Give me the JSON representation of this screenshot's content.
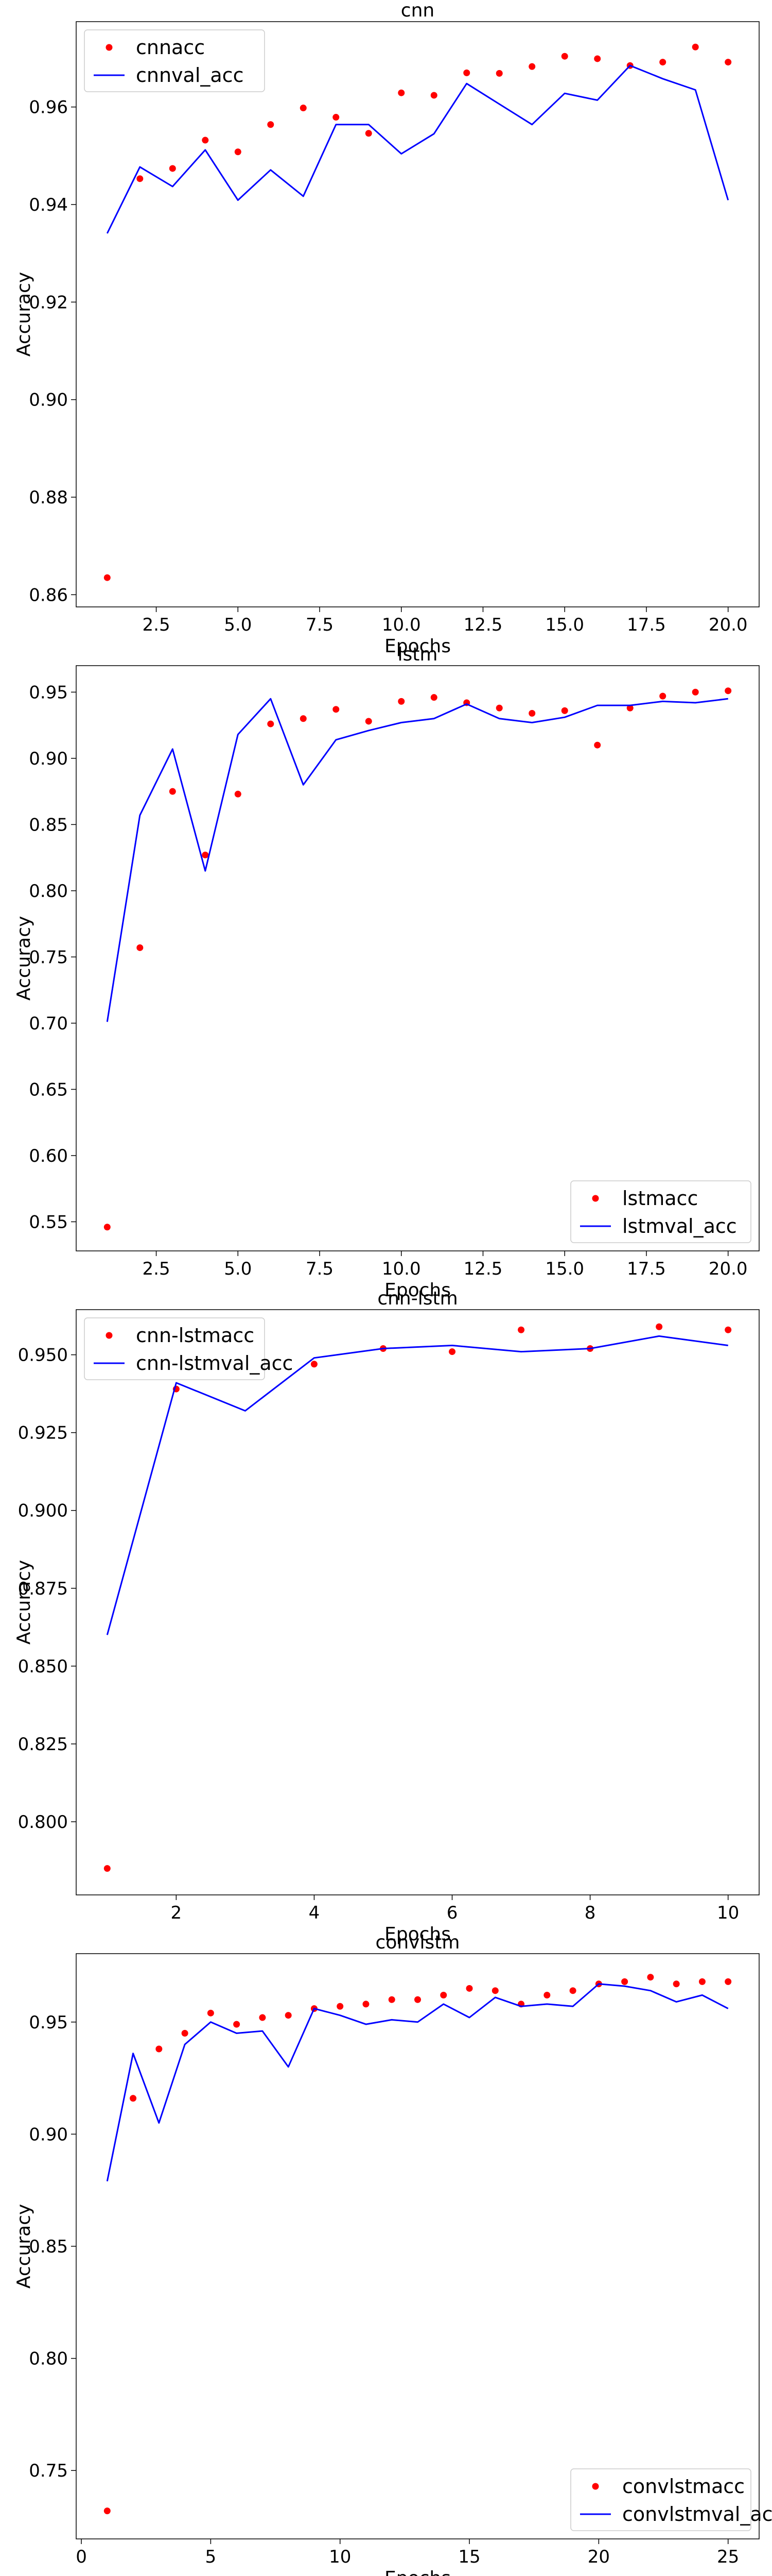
{
  "chart_data": [
    {
      "type": "line",
      "title": "cnn",
      "xlabel": "Epochs",
      "ylabel": "Accuracy",
      "xlim": [
        0.05,
        20.95
      ],
      "ylim": [
        0.8575,
        0.9775
      ],
      "xticks": [
        2.5,
        5.0,
        7.5,
        10.0,
        12.5,
        15.0,
        17.5,
        20.0
      ],
      "xtick_labels": [
        "2.5",
        "5.0",
        "7.5",
        "10.0",
        "12.5",
        "15.0",
        "17.5",
        "20.0"
      ],
      "yticks": [
        0.86,
        0.88,
        0.9,
        0.92,
        0.94,
        0.96
      ],
      "ytick_labels": [
        "0.86",
        "0.88",
        "0.90",
        "0.92",
        "0.94",
        "0.96"
      ],
      "legend_position": "top-left",
      "x": [
        1,
        2,
        3,
        4,
        5,
        6,
        7,
        8,
        9,
        10,
        11,
        12,
        13,
        14,
        15,
        16,
        17,
        18,
        19,
        20
      ],
      "series": [
        {
          "name": "cnnacc",
          "style": "points",
          "color": "#ff0000",
          "values": [
            0.8635,
            0.9453,
            0.9474,
            0.9532,
            0.9508,
            0.9564,
            0.9598,
            0.9579,
            0.9546,
            0.9629,
            0.9624,
            0.967,
            0.9669,
            0.9683,
            0.9704,
            0.9699,
            0.9685,
            0.9692,
            0.9723,
            0.9692
          ]
        },
        {
          "name": "cnnval_acc",
          "style": "line",
          "color": "#0000ff",
          "values": [
            0.9341,
            0.9477,
            0.9437,
            0.9512,
            0.9409,
            0.9471,
            0.9417,
            0.9564,
            0.9564,
            0.9504,
            0.9545,
            0.9648,
            0.9606,
            0.9564,
            0.9628,
            0.9614,
            0.9685,
            0.9658,
            0.9635,
            0.9409
          ]
        }
      ]
    },
    {
      "type": "line",
      "title": "lstm",
      "xlabel": "Epochs",
      "ylabel": "Accuracy",
      "xlim": [
        0.05,
        20.95
      ],
      "ylim": [
        0.528,
        0.97
      ],
      "xticks": [
        2.5,
        5.0,
        7.5,
        10.0,
        12.5,
        15.0,
        17.5,
        20.0
      ],
      "xtick_labels": [
        "2.5",
        "5.0",
        "7.5",
        "10.0",
        "12.5",
        "15.0",
        "17.5",
        "20.0"
      ],
      "yticks": [
        0.55,
        0.6,
        0.65,
        0.7,
        0.75,
        0.8,
        0.85,
        0.9,
        0.95
      ],
      "ytick_labels": [
        "0.55",
        "0.60",
        "0.65",
        "0.70",
        "0.75",
        "0.80",
        "0.85",
        "0.90",
        "0.95"
      ],
      "legend_position": "bottom-right",
      "x": [
        1,
        2,
        3,
        4,
        5,
        6,
        7,
        8,
        9,
        10,
        11,
        12,
        13,
        14,
        15,
        16,
        17,
        18,
        19,
        20
      ],
      "series": [
        {
          "name": "lstmacc",
          "style": "points",
          "color": "#ff0000",
          "values": [
            0.546,
            0.757,
            0.875,
            0.827,
            0.873,
            0.926,
            0.93,
            0.937,
            0.928,
            0.943,
            0.946,
            0.942,
            0.938,
            0.934,
            0.936,
            0.91,
            0.938,
            0.947,
            0.95,
            0.951
          ]
        },
        {
          "name": "lstmval_acc",
          "style": "line",
          "color": "#0000ff",
          "values": [
            0.701,
            0.857,
            0.907,
            0.815,
            0.918,
            0.945,
            0.88,
            0.914,
            0.921,
            0.927,
            0.93,
            0.941,
            0.93,
            0.927,
            0.931,
            0.94,
            0.94,
            0.943,
            0.942,
            0.945
          ]
        }
      ]
    },
    {
      "type": "line",
      "title": "cnn-lstm",
      "xlabel": "Epochs",
      "ylabel": "Accuracy",
      "xlim": [
        0.55,
        10.45
      ],
      "ylim": [
        0.7765,
        0.9645
      ],
      "xticks": [
        2,
        4,
        6,
        8,
        10
      ],
      "xtick_labels": [
        "2",
        "4",
        "6",
        "8",
        "10"
      ],
      "yticks": [
        0.8,
        0.825,
        0.85,
        0.875,
        0.9,
        0.925,
        0.95
      ],
      "ytick_labels": [
        "0.800",
        "0.825",
        "0.850",
        "0.875",
        "0.900",
        "0.925",
        "0.950"
      ],
      "legend_position": "top-left",
      "x": [
        1,
        2,
        3,
        4,
        5,
        6,
        7,
        8,
        9,
        10
      ],
      "series": [
        {
          "name": "cnn-lstmacc",
          "style": "points",
          "color": "#ff0000",
          "values": [
            0.785,
            0.939,
            0.945,
            0.947,
            0.952,
            0.951,
            0.958,
            0.952,
            0.959,
            0.958
          ]
        },
        {
          "name": "cnn-lstmval_acc",
          "style": "line",
          "color": "#0000ff",
          "values": [
            0.86,
            0.941,
            0.932,
            0.949,
            0.952,
            0.953,
            0.951,
            0.952,
            0.956,
            0.953
          ]
        }
      ]
    },
    {
      "type": "line",
      "title": "convlstm",
      "xlabel": "Epochs",
      "ylabel": "Accuracy",
      "xlim": [
        -0.2,
        26.2
      ],
      "ylim": [
        0.7195,
        0.9805
      ],
      "xticks": [
        0,
        5,
        10,
        15,
        20,
        25
      ],
      "xtick_labels": [
        "0",
        "5",
        "10",
        "15",
        "20",
        "25"
      ],
      "yticks": [
        0.75,
        0.8,
        0.85,
        0.9,
        0.95
      ],
      "ytick_labels": [
        "0.75",
        "0.80",
        "0.85",
        "0.90",
        "0.95"
      ],
      "legend_position": "bottom-right",
      "x": [
        1,
        2,
        3,
        4,
        5,
        6,
        7,
        8,
        9,
        10,
        11,
        12,
        13,
        14,
        15,
        16,
        17,
        18,
        19,
        20,
        21,
        22,
        23,
        24,
        25
      ],
      "series": [
        {
          "name": "convlstmacc",
          "style": "points",
          "color": "#ff0000",
          "values": [
            0.732,
            0.916,
            0.938,
            0.945,
            0.954,
            0.949,
            0.952,
            0.953,
            0.956,
            0.957,
            0.958,
            0.96,
            0.96,
            0.962,
            0.965,
            0.964,
            0.958,
            0.962,
            0.964,
            0.967,
            0.968,
            0.97,
            0.967,
            0.968,
            0.968
          ]
        },
        {
          "name": "convlstmval_acc",
          "style": "line",
          "color": "#0000ff",
          "values": [
            0.879,
            0.936,
            0.905,
            0.94,
            0.95,
            0.945,
            0.946,
            0.93,
            0.956,
            0.953,
            0.949,
            0.951,
            0.95,
            0.958,
            0.952,
            0.961,
            0.957,
            0.958,
            0.957,
            0.967,
            0.966,
            0.964,
            0.959,
            0.962,
            0.956
          ]
        }
      ]
    }
  ]
}
